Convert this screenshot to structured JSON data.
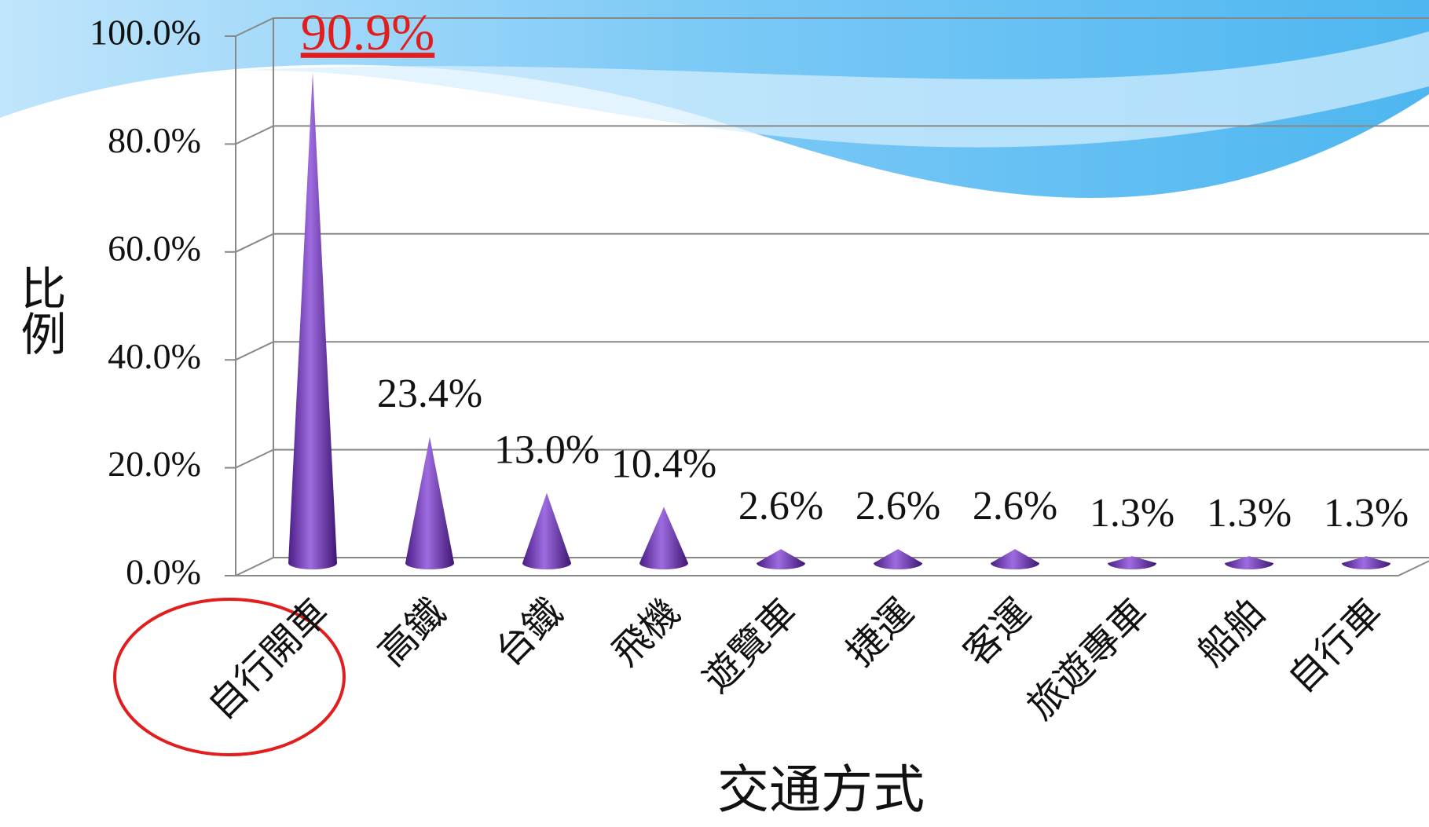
{
  "chart_data": {
    "type": "cone",
    "title": "交通方式",
    "y_label": "比例",
    "categories": [
      "自行開車",
      "高鐵",
      "台鐵",
      "飛機",
      "遊覽車",
      "捷運",
      "客運",
      "旅遊專車",
      "船舶",
      "自行車"
    ],
    "values": [
      90.9,
      23.4,
      13.0,
      10.4,
      2.6,
      2.6,
      2.6,
      1.3,
      1.3,
      1.3
    ],
    "value_labels": [
      "90.9%",
      "23.4%",
      "13.0%",
      "10.4%",
      "2.6%",
      "2.6%",
      "2.6%",
      "1.3%",
      "1.3%",
      "1.3%"
    ],
    "color": "#7b44c0",
    "ylim": [
      0,
      100
    ],
    "yticks": [
      {
        "value": 0,
        "label": "0.0%"
      },
      {
        "value": 20,
        "label": "20.0%"
      },
      {
        "value": 40,
        "label": "40.0%"
      },
      {
        "value": 60,
        "label": "60.0%"
      },
      {
        "value": 80,
        "label": "80.0%"
      },
      {
        "value": 100,
        "label": "100.0%"
      }
    ],
    "grid": true
  }
}
